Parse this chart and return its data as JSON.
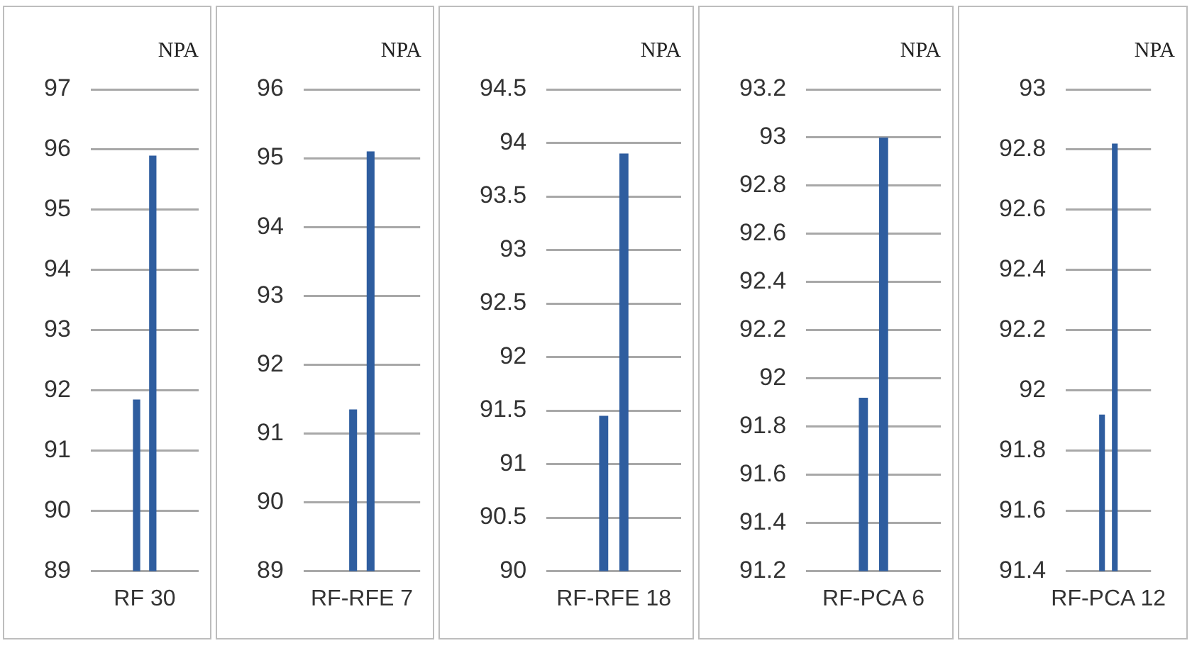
{
  "chart_data": [
    {
      "type": "bar",
      "title": "NPA",
      "categories": [
        "RF 30"
      ],
      "series": [
        {
          "color": "#2e5d9f",
          "values": [
            91.85
          ]
        },
        {
          "color": "#2e5d9f",
          "values": [
            95.9
          ]
        }
      ],
      "ylim": [
        89,
        97
      ],
      "yticks": [
        89,
        90,
        91,
        92,
        93,
        94,
        95,
        96,
        97
      ],
      "grid": "y",
      "legend": false
    },
    {
      "type": "bar",
      "title": "NPA",
      "categories": [
        "RF-RFE 7"
      ],
      "series": [
        {
          "color": "#2e5d9f",
          "values": [
            91.35
          ]
        },
        {
          "color": "#2e5d9f",
          "values": [
            95.1
          ]
        }
      ],
      "ylim": [
        89,
        96
      ],
      "yticks": [
        89,
        90,
        91,
        92,
        93,
        94,
        95,
        96
      ],
      "grid": "y",
      "legend": false
    },
    {
      "type": "bar",
      "title": "NPA",
      "categories": [
        "RF-RFE 18"
      ],
      "series": [
        {
          "color": "#2e5d9f",
          "values": [
            91.45
          ]
        },
        {
          "color": "#2e5d9f",
          "values": [
            93.9
          ]
        }
      ],
      "ylim": [
        90,
        94.5
      ],
      "yticks": [
        90,
        90.5,
        91,
        91.5,
        92,
        92.5,
        93,
        93.5,
        94,
        94.5
      ],
      "grid": "y",
      "legend": false
    },
    {
      "type": "bar",
      "title": "NPA",
      "categories": [
        "RF-PCA 6"
      ],
      "series": [
        {
          "color": "#2e5d9f",
          "values": [
            91.92
          ]
        },
        {
          "color": "#2e5d9f",
          "values": [
            93.0
          ]
        }
      ],
      "ylim": [
        91.2,
        93.2
      ],
      "yticks": [
        91.2,
        91.4,
        91.6,
        91.8,
        92,
        92.2,
        92.4,
        92.6,
        92.8,
        93,
        93.2
      ],
      "grid": "y",
      "legend": false
    },
    {
      "type": "bar",
      "title": "NPA",
      "categories": [
        "RF-PCA 12"
      ],
      "series": [
        {
          "color": "#2e5d9f",
          "values": [
            91.92
          ]
        },
        {
          "color": "#2e5d9f",
          "values": [
            92.82
          ]
        }
      ],
      "ylim": [
        91.4,
        93
      ],
      "yticks": [
        91.4,
        91.6,
        91.8,
        92,
        92.2,
        92.4,
        92.6,
        92.8,
        93
      ],
      "grid": "y",
      "legend": false
    }
  ]
}
